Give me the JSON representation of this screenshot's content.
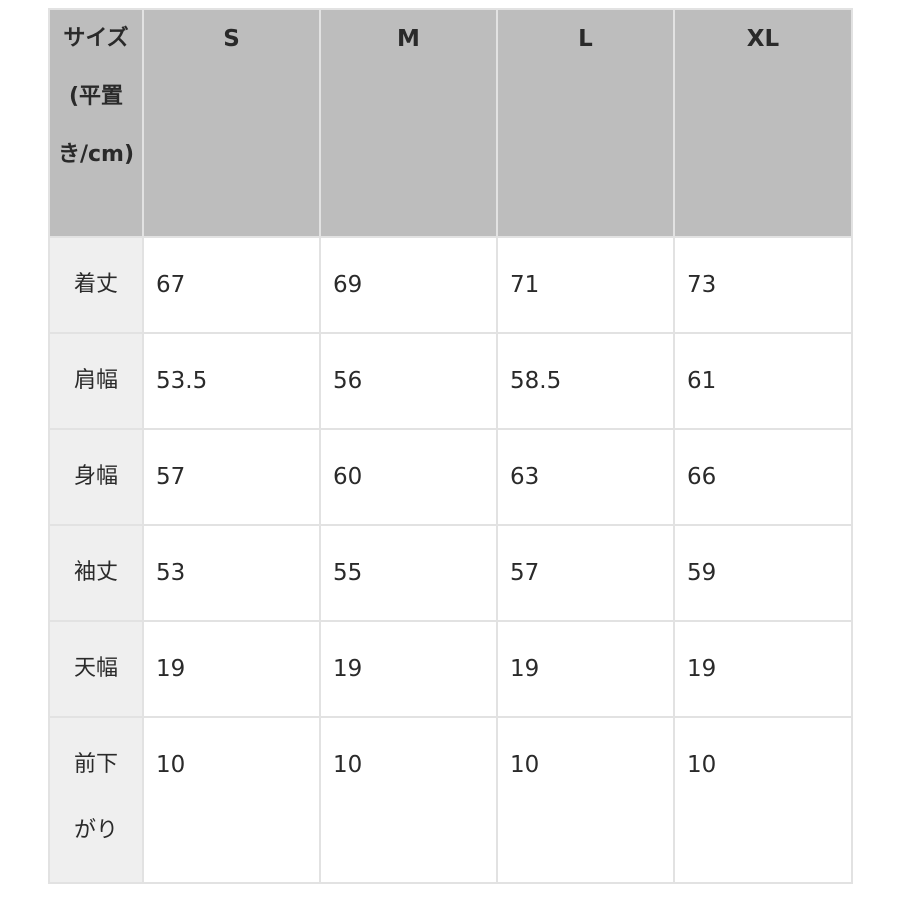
{
  "table": {
    "corner_header": "サイズ(平置き/cm)",
    "sizes": [
      "S",
      "M",
      "L",
      "XL"
    ],
    "rows": [
      {
        "label": "着丈",
        "values": [
          "67",
          "69",
          "71",
          "73"
        ]
      },
      {
        "label": "肩幅",
        "values": [
          "53.5",
          "56",
          "58.5",
          "61"
        ]
      },
      {
        "label": "身幅",
        "values": [
          "57",
          "60",
          "63",
          "66"
        ]
      },
      {
        "label": "袖丈",
        "values": [
          "53",
          "55",
          "57",
          "59"
        ]
      },
      {
        "label": "天幅",
        "values": [
          "19",
          "19",
          "19",
          "19"
        ]
      },
      {
        "label": "前下がり",
        "values": [
          "10",
          "10",
          "10",
          "10"
        ]
      }
    ]
  },
  "colors": {
    "header_bg": "#bdbdbd",
    "label_bg": "#efefef",
    "border": "#e2e2e2"
  }
}
